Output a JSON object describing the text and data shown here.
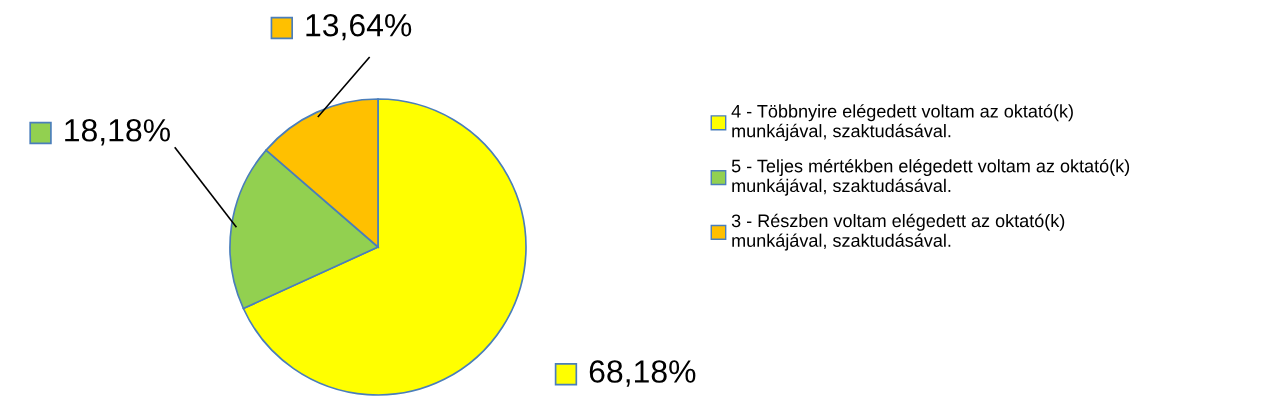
{
  "chart_data": {
    "type": "pie",
    "categories": [
      "4 - Többnyire elégedett voltam az oktató(k)\nmunkájával, szaktudásával.",
      "5 - Teljes mértékben elégedett voltam az oktató(k)\nmunkájával, szaktudásával.",
      "3 - Részben voltam elégedett az oktató(k)\nmunkájával, szaktudásával."
    ],
    "values": [
      68.18,
      18.18,
      13.64
    ],
    "colors": [
      "#ffff00",
      "#92d050",
      "#ffc000"
    ],
    "value_labels": [
      "68,18%",
      "18,18%",
      "13,64%"
    ],
    "legend": "right"
  }
}
